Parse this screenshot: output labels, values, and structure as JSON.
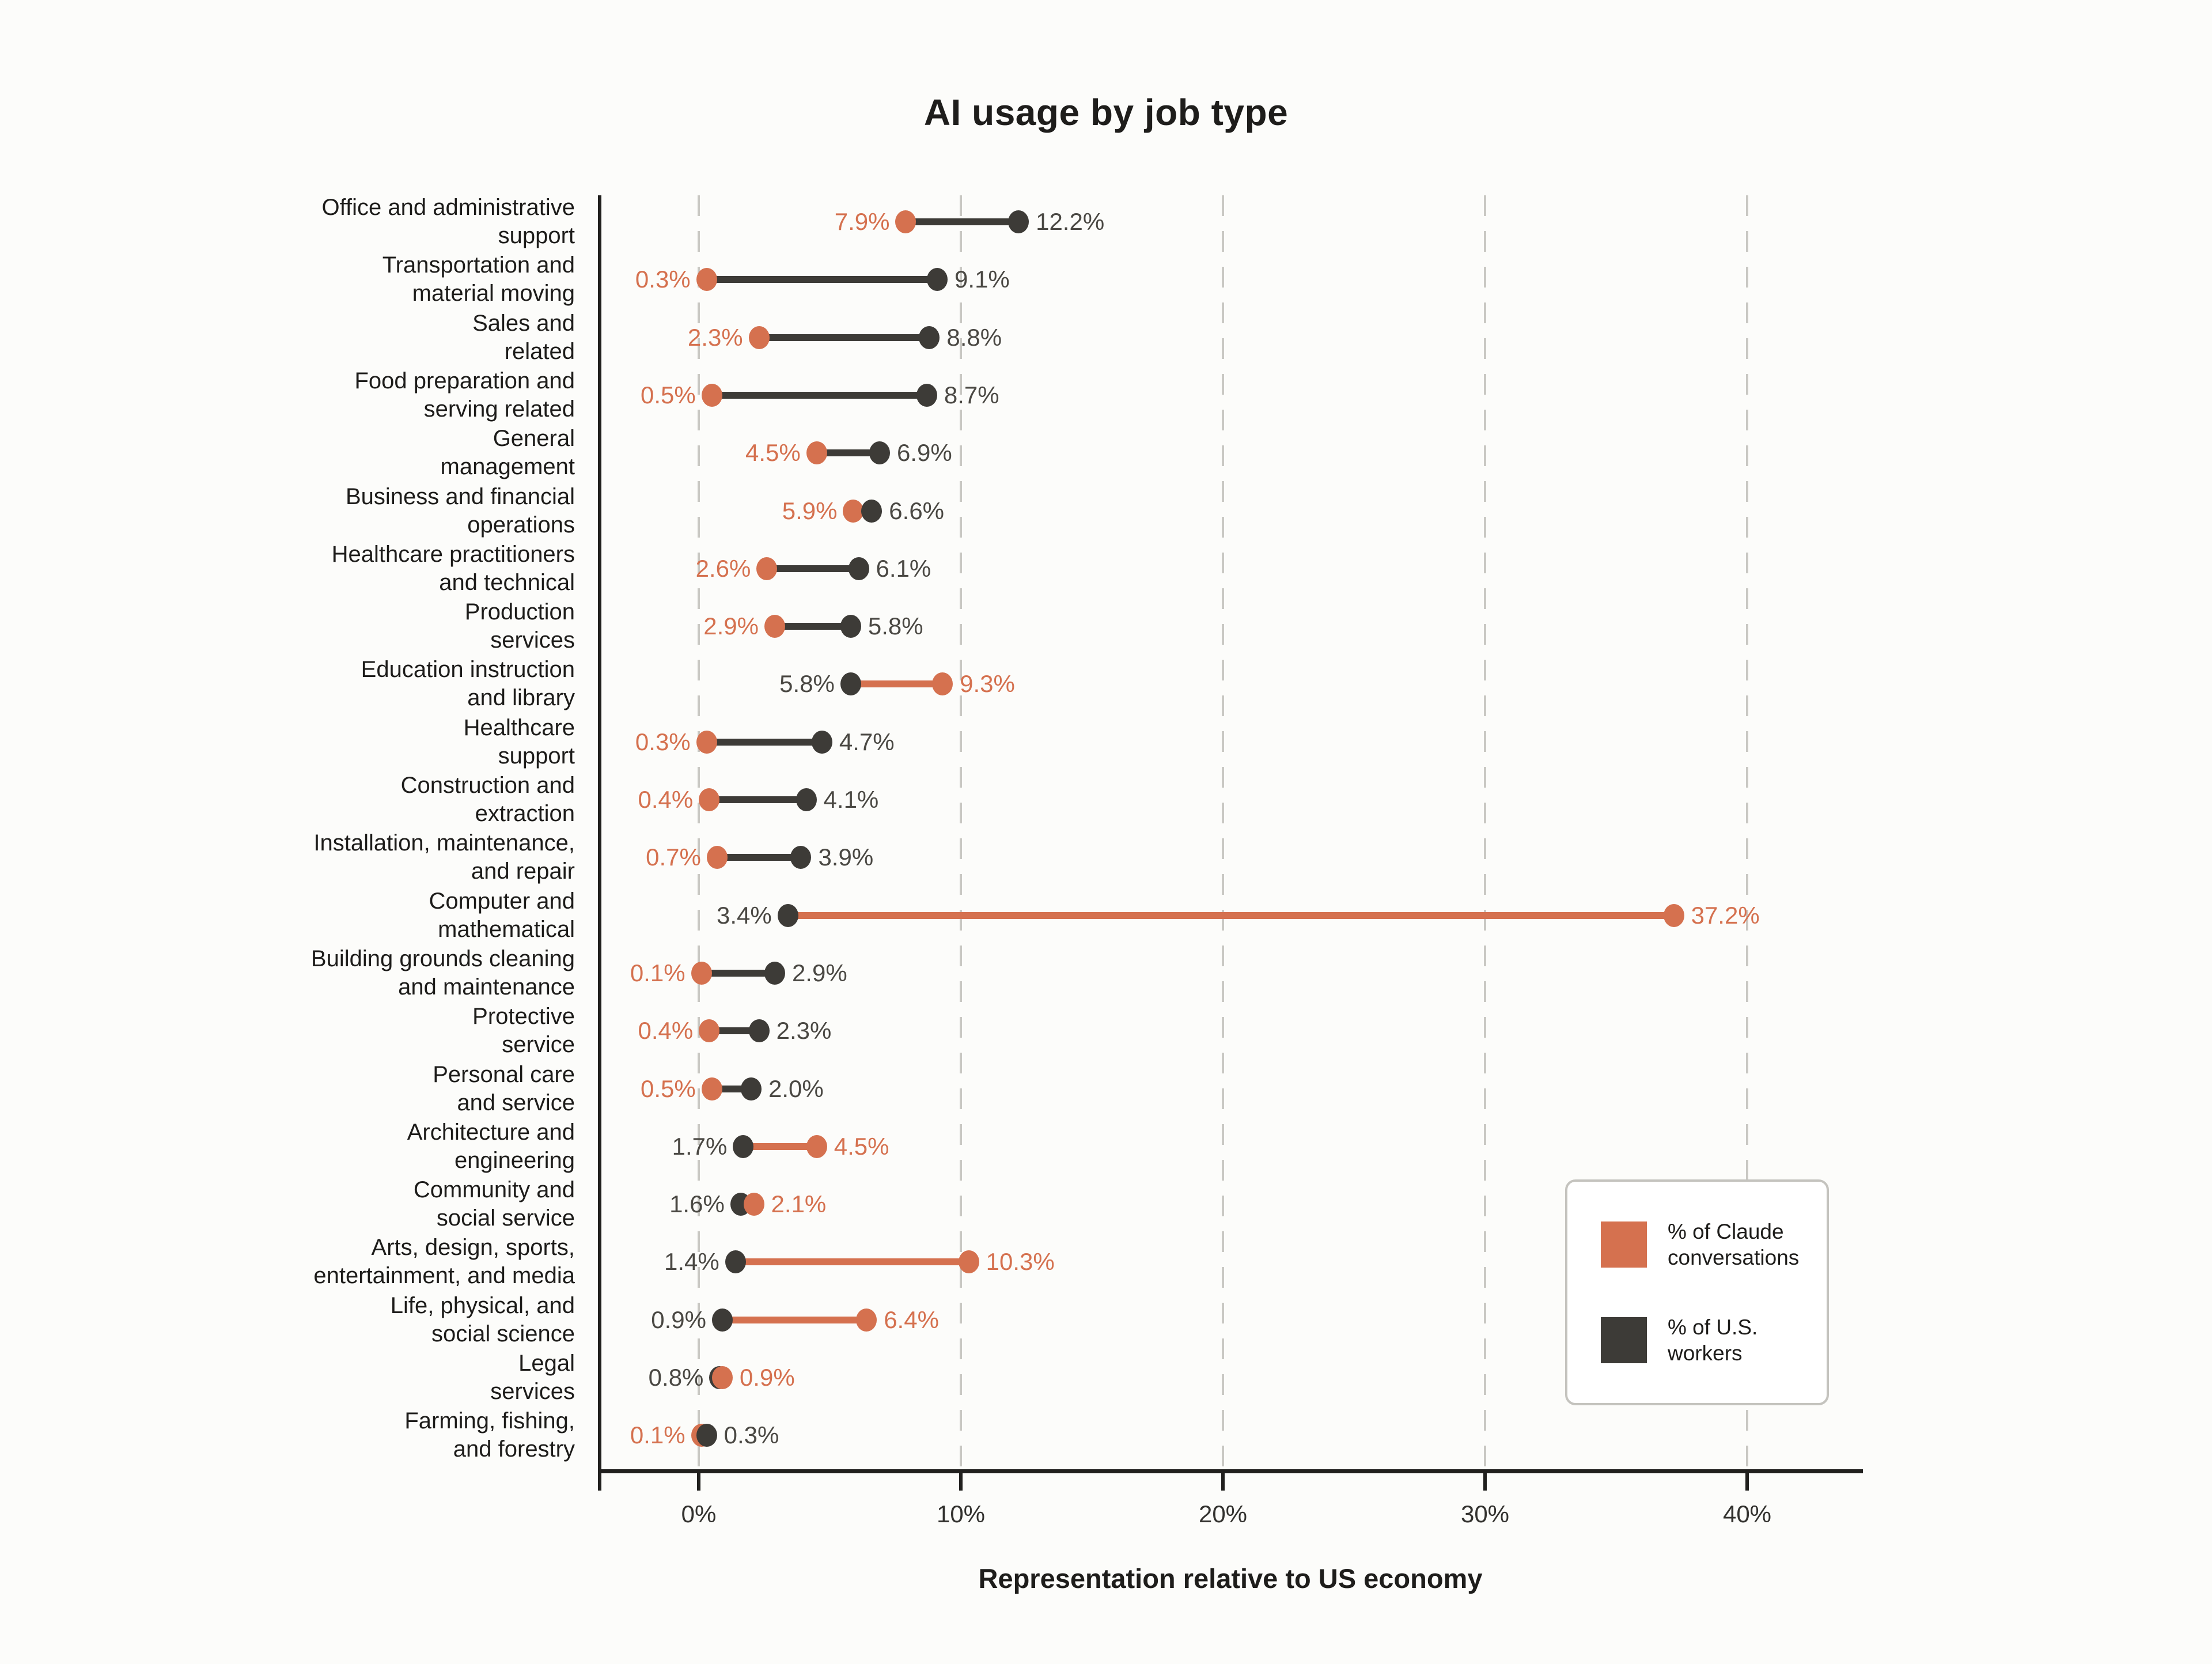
{
  "title": "AI usage by job type",
  "x_axis_label": "Representation relative to US economy",
  "legend": {
    "items": [
      {
        "label": "% of Claude conversations",
        "series": "claude"
      },
      {
        "label": "% of U.S. workers",
        "series": "us"
      }
    ]
  },
  "style": {
    "claude_color": "#D5714F",
    "us_color": "#3D3B37",
    "us_value_label_color": "#4A4843",
    "text_color": "#1D1C1A",
    "axis_color": "#21201E",
    "gridline_color": "#C9C8C3",
    "background": "#FCFCFA",
    "legend_border": "#C4C3BE"
  },
  "chart_data": {
    "type": "dumbbell",
    "orientation": "horizontal",
    "title": "AI usage by job type",
    "xlabel": "Representation relative to US economy",
    "xlim": [
      -3.9,
      44.4
    ],
    "x_ticks": [
      0,
      10,
      20,
      30,
      40
    ],
    "x_tick_labels": [
      "0%",
      "10%",
      "20%",
      "30%",
      "40%"
    ],
    "grid": "vertical dashed gridlines at each tick",
    "legend_position": "inside lower right",
    "value_label_format": "{value}%",
    "categories": [
      "Office and administrative support",
      "Transportation and material moving",
      "Sales and related",
      "Food preparation and serving related",
      "General management",
      "Business and financial operations",
      "Healthcare practitioners and technical",
      "Production services",
      "Education instruction and library",
      "Healthcare support",
      "Construction and extraction",
      "Installation, maintenance, and repair",
      "Computer and mathematical",
      "Building grounds cleaning and maintenance",
      "Protective service",
      "Personal care and service",
      "Architecture and engineering",
      "Community and social service",
      "Arts, design, sports, entertainment, and media",
      "Life, physical, and social science",
      "Legal services",
      "Farming, fishing, and forestry"
    ],
    "category_label_lines": [
      [
        "Office and administrative",
        "support"
      ],
      [
        "Transportation and",
        "material moving"
      ],
      [
        "Sales and",
        "related"
      ],
      [
        "Food preparation and",
        "serving related"
      ],
      [
        "General",
        "management"
      ],
      [
        "Business and financial",
        "operations"
      ],
      [
        "Healthcare practitioners",
        "and technical"
      ],
      [
        "Production",
        "services"
      ],
      [
        "Education instruction",
        "and library"
      ],
      [
        "Healthcare",
        "support"
      ],
      [
        "Construction and",
        "extraction"
      ],
      [
        "Installation, maintenance,",
        "and repair"
      ],
      [
        "Computer and",
        "mathematical"
      ],
      [
        "Building grounds cleaning",
        "and maintenance"
      ],
      [
        "Protective",
        "service"
      ],
      [
        "Personal care",
        "and service"
      ],
      [
        "Architecture and",
        "engineering"
      ],
      [
        "Community and",
        "social service"
      ],
      [
        "Arts, design, sports,",
        "entertainment, and media"
      ],
      [
        "Life, physical, and",
        "social science"
      ],
      [
        "Legal",
        "services"
      ],
      [
        "Farming, fishing,",
        "and forestry"
      ]
    ],
    "series": [
      {
        "name": "% of Claude conversations",
        "color": "#D5714F",
        "values": [
          7.9,
          0.3,
          2.3,
          0.5,
          4.5,
          5.9,
          2.6,
          2.9,
          9.3,
          0.3,
          0.4,
          0.7,
          37.2,
          0.1,
          0.4,
          0.5,
          4.5,
          2.1,
          10.3,
          6.4,
          0.9,
          0.1
        ]
      },
      {
        "name": "% of U.S. workers",
        "color": "#3D3B37",
        "values": [
          12.2,
          9.1,
          8.8,
          8.7,
          6.9,
          6.6,
          6.1,
          5.8,
          5.8,
          4.7,
          4.1,
          3.9,
          3.4,
          2.9,
          2.3,
          2.0,
          1.7,
          1.6,
          1.4,
          0.9,
          0.8,
          0.3
        ]
      }
    ]
  }
}
